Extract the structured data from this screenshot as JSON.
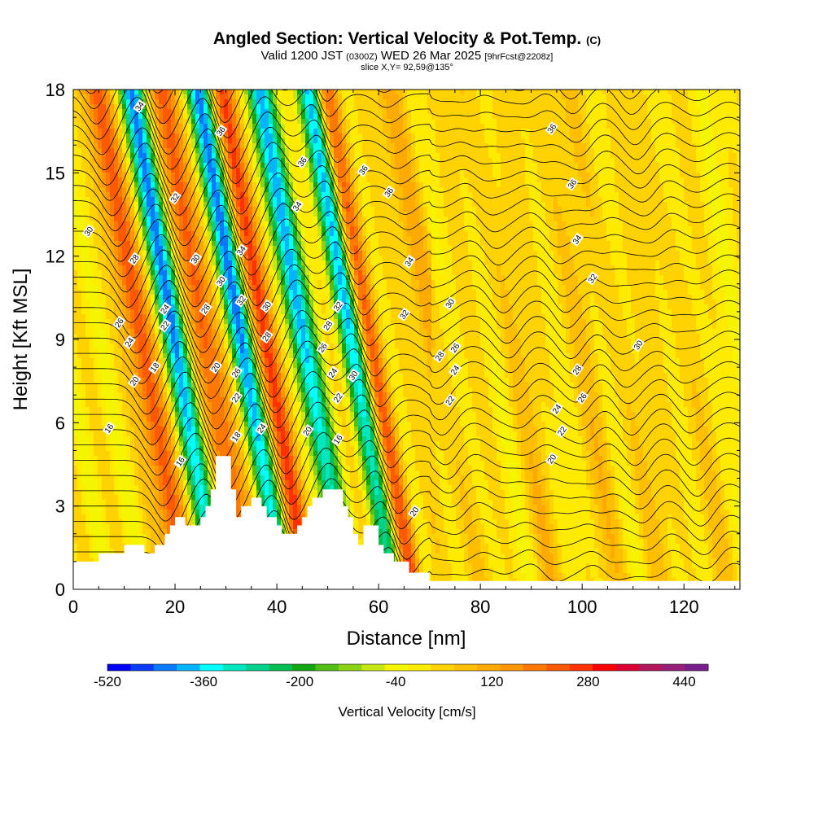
{
  "header": {
    "title": "Angled Section: Vertical Velocity & Pot.Temp.",
    "title_unit": "(C)",
    "valid_prefix": "Valid 1200 JST",
    "valid_z": "(0300Z)",
    "valid_date": "WED 26 Mar 2025",
    "valid_fcst": "[9hrFcst@2208z]",
    "slice": "slice X,Y= 92,59@135°"
  },
  "chart_data": {
    "type": "heatmap",
    "xlabel": "Distance [nm]",
    "ylabel": "Height [Kft MSL]",
    "xlim": [
      0,
      131
    ],
    "ylim": [
      0,
      18
    ],
    "x_ticks": [
      "0",
      "20",
      "40",
      "60",
      "80",
      "100",
      "120"
    ],
    "y_ticks": [
      "0",
      "3",
      "6",
      "9",
      "12",
      "15",
      "18"
    ],
    "colorbar": {
      "label": "Vertical Velocity [cm/s]",
      "min": -520,
      "max": 480,
      "step": 40,
      "tick_labels": [
        "-520",
        "-360",
        "-200",
        "-40",
        "120",
        "280",
        "440"
      ],
      "colors": [
        "#0000ff",
        "#0a3cff",
        "#0a78ff",
        "#00b4ff",
        "#00ffff",
        "#00e6be",
        "#00d28c",
        "#00be50",
        "#14a514",
        "#50be14",
        "#8cd214",
        "#c8e614",
        "#f5f500",
        "#ffeb00",
        "#ffd200",
        "#ffbe00",
        "#ffaa00",
        "#ff9600",
        "#ff7800",
        "#ff5a00",
        "#ff3200",
        "#ff0000",
        "#dc0032",
        "#b4145a",
        "#961e78",
        "#781e8c"
      ]
    },
    "updraft_bands_x_nm": [
      13,
      26,
      38,
      58,
      70,
      86,
      98,
      107,
      118
    ],
    "downdraft_bands_x_nm": [
      20,
      33,
      45,
      55
    ],
    "terrain": [
      [
        0,
        1.0
      ],
      [
        5,
        1.0
      ],
      [
        5,
        1.3
      ],
      [
        10,
        1.3
      ],
      [
        10,
        1.6
      ],
      [
        14,
        1.6
      ],
      [
        14,
        1.3
      ],
      [
        16,
        1.3
      ],
      [
        16,
        1.6
      ],
      [
        18,
        1.6
      ],
      [
        18,
        2.0
      ],
      [
        19,
        2.0
      ],
      [
        19,
        2.3
      ],
      [
        20,
        2.3
      ],
      [
        20,
        2.6
      ],
      [
        22,
        2.6
      ],
      [
        22,
        2.3
      ],
      [
        25,
        2.3
      ],
      [
        25,
        2.6
      ],
      [
        26,
        2.6
      ],
      [
        26,
        3.0
      ],
      [
        27,
        3.0
      ],
      [
        27,
        3.6
      ],
      [
        28,
        3.6
      ],
      [
        28,
        4.8
      ],
      [
        31,
        4.8
      ],
      [
        31,
        3.6
      ],
      [
        32,
        3.6
      ],
      [
        32,
        2.6
      ],
      [
        33,
        2.6
      ],
      [
        33,
        3.0
      ],
      [
        35,
        3.0
      ],
      [
        35,
        3.3
      ],
      [
        37,
        3.3
      ],
      [
        37,
        3.0
      ],
      [
        38,
        3.0
      ],
      [
        38,
        2.6
      ],
      [
        40,
        2.6
      ],
      [
        40,
        2.3
      ],
      [
        41,
        2.3
      ],
      [
        41,
        2.0
      ],
      [
        44,
        2.0
      ],
      [
        44,
        2.3
      ],
      [
        45,
        2.3
      ],
      [
        45,
        2.6
      ],
      [
        46,
        2.6
      ],
      [
        46,
        3.0
      ],
      [
        47,
        3.0
      ],
      [
        47,
        3.3
      ],
      [
        49,
        3.3
      ],
      [
        49,
        3.6
      ],
      [
        53,
        3.6
      ],
      [
        53,
        3.0
      ],
      [
        54,
        3.0
      ],
      [
        54,
        2.6
      ],
      [
        55,
        2.6
      ],
      [
        55,
        2.0
      ],
      [
        56,
        2.0
      ],
      [
        56,
        1.6
      ],
      [
        57,
        1.6
      ],
      [
        57,
        2.3
      ],
      [
        60,
        2.3
      ],
      [
        60,
        1.6
      ],
      [
        61,
        1.6
      ],
      [
        61,
        1.3
      ],
      [
        63,
        1.3
      ],
      [
        63,
        1.0
      ],
      [
        66,
        1.0
      ],
      [
        66,
        0.6
      ],
      [
        70,
        0.6
      ],
      [
        70,
        0.3
      ],
      [
        131,
        0.3
      ],
      [
        131,
        0
      ]
    ],
    "contour_labels": [
      {
        "x": 13,
        "y": 17.4,
        "t": "34"
      },
      {
        "x": 29,
        "y": 16.5,
        "t": "36"
      },
      {
        "x": 45,
        "y": 15.4,
        "t": "36"
      },
      {
        "x": 57,
        "y": 15.1,
        "t": "36"
      },
      {
        "x": 62,
        "y": 14.3,
        "t": "36"
      },
      {
        "x": 94,
        "y": 16.6,
        "t": "36"
      },
      {
        "x": 98,
        "y": 14.6,
        "t": "36"
      },
      {
        "x": 99,
        "y": 12.6,
        "t": "34"
      },
      {
        "x": 102,
        "y": 11.2,
        "t": "32"
      },
      {
        "x": 3,
        "y": 12.9,
        "t": "30"
      },
      {
        "x": 12,
        "y": 11.9,
        "t": "28"
      },
      {
        "x": 20,
        "y": 14.1,
        "t": "32"
      },
      {
        "x": 24,
        "y": 11.9,
        "t": "30"
      },
      {
        "x": 33,
        "y": 12.2,
        "t": "34"
      },
      {
        "x": 29,
        "y": 11.1,
        "t": "30"
      },
      {
        "x": 33,
        "y": 10.4,
        "t": "32"
      },
      {
        "x": 38,
        "y": 10.2,
        "t": "30"
      },
      {
        "x": 44,
        "y": 13.8,
        "t": "34"
      },
      {
        "x": 52,
        "y": 10.2,
        "t": "32"
      },
      {
        "x": 66,
        "y": 11.8,
        "t": "34"
      },
      {
        "x": 65,
        "y": 9.9,
        "t": "32"
      },
      {
        "x": 74,
        "y": 10.3,
        "t": "30"
      },
      {
        "x": 9,
        "y": 9.6,
        "t": "26"
      },
      {
        "x": 11,
        "y": 8.9,
        "t": "24"
      },
      {
        "x": 18,
        "y": 10.1,
        "t": "24"
      },
      {
        "x": 18,
        "y": 9.5,
        "t": "22"
      },
      {
        "x": 26,
        "y": 10.1,
        "t": "28"
      },
      {
        "x": 38,
        "y": 9.1,
        "t": "28"
      },
      {
        "x": 50,
        "y": 9.5,
        "t": "28"
      },
      {
        "x": 49,
        "y": 8.7,
        "t": "26"
      },
      {
        "x": 51,
        "y": 7.8,
        "t": "24"
      },
      {
        "x": 52,
        "y": 6.9,
        "t": "22"
      },
      {
        "x": 55,
        "y": 7.7,
        "t": "30"
      },
      {
        "x": 72,
        "y": 8.4,
        "t": "28"
      },
      {
        "x": 75,
        "y": 8.7,
        "t": "26"
      },
      {
        "x": 75,
        "y": 7.9,
        "t": "24"
      },
      {
        "x": 74,
        "y": 6.8,
        "t": "22"
      },
      {
        "x": 12,
        "y": 7.5,
        "t": "20"
      },
      {
        "x": 16,
        "y": 8.0,
        "t": "18"
      },
      {
        "x": 28,
        "y": 8.0,
        "t": "20"
      },
      {
        "x": 32,
        "y": 7.8,
        "t": "26"
      },
      {
        "x": 32,
        "y": 6.9,
        "t": "22"
      },
      {
        "x": 37,
        "y": 5.8,
        "t": "24"
      },
      {
        "x": 46,
        "y": 5.7,
        "t": "20"
      },
      {
        "x": 52,
        "y": 5.4,
        "t": "16"
      },
      {
        "x": 32,
        "y": 5.5,
        "t": "18"
      },
      {
        "x": 21,
        "y": 4.6,
        "t": "16"
      },
      {
        "x": 7,
        "y": 5.8,
        "t": "16"
      },
      {
        "x": 99,
        "y": 7.9,
        "t": "28"
      },
      {
        "x": 100,
        "y": 6.9,
        "t": "26"
      },
      {
        "x": 95,
        "y": 6.5,
        "t": "24"
      },
      {
        "x": 96,
        "y": 5.7,
        "t": "22"
      },
      {
        "x": 94,
        "y": 4.7,
        "t": "20"
      },
      {
        "x": 111,
        "y": 8.8,
        "t": "30"
      },
      {
        "x": 67,
        "y": 2.8,
        "t": "20"
      }
    ]
  }
}
